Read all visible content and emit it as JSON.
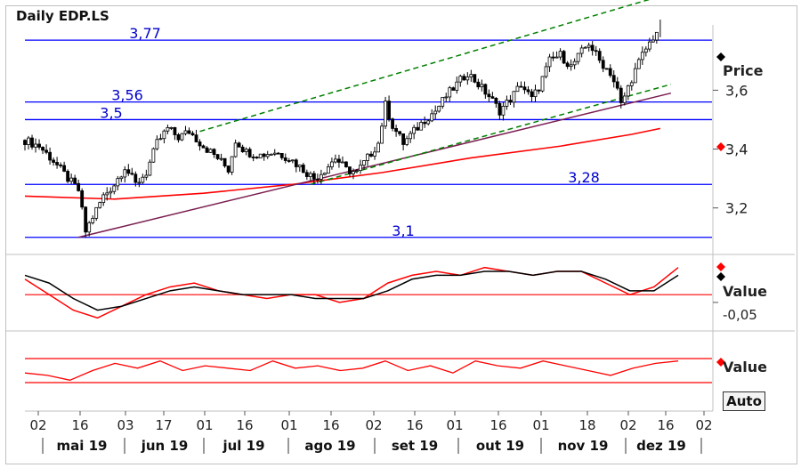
{
  "title": "Daily EDP.LS",
  "panels": {
    "price": {
      "label": "Price"
    },
    "osc1": {
      "label": "Value",
      "tick": "-0,05"
    },
    "osc2": {
      "label": "Value"
    }
  },
  "auto_button": "Auto",
  "colors": {
    "candle": "#000000",
    "level": "#0000ff",
    "channel": "#008000",
    "trendline": "#7a1e50",
    "moving_average": "#ff0000",
    "osc_red": "#ff0000",
    "osc_black": "#000000",
    "ref_line": "#ff0000",
    "level_text": "#0000cc"
  },
  "chart_data": [
    {
      "type": "candlestick",
      "title": "Daily EDP.LS",
      "ylabel": "Price",
      "ylim": [
        3.06,
        3.84
      ],
      "yticks": [
        "3,2",
        "3,4",
        "3,6"
      ],
      "x_day_ticks": [
        "02",
        "16",
        "03",
        "17",
        "01",
        "16",
        "01",
        "16",
        "02",
        "16",
        "01",
        "16",
        "01",
        "18",
        "02",
        "16",
        "02"
      ],
      "x_month_labels": [
        "mai 19",
        "jun 19",
        "jul 19",
        "ago 19",
        "set 19",
        "out 19",
        "nov 19",
        "dez 19"
      ],
      "horizontal_levels": [
        {
          "value": 3.77,
          "label": "3,77"
        },
        {
          "value": 3.56,
          "label": "3,56"
        },
        {
          "value": 3.5,
          "label": "3,5"
        },
        {
          "value": 3.28,
          "label": "3,28"
        },
        {
          "value": 3.1,
          "label": "3,1"
        }
      ],
      "close_series": [
        {
          "t": 0,
          "c": 3.43
        },
        {
          "t": 4,
          "c": 3.41
        },
        {
          "t": 8,
          "c": 3.36
        },
        {
          "t": 12,
          "c": 3.3
        },
        {
          "t": 15,
          "c": 3.26
        },
        {
          "t": 17,
          "c": 3.12
        },
        {
          "t": 19,
          "c": 3.17
        },
        {
          "t": 22,
          "c": 3.24
        },
        {
          "t": 25,
          "c": 3.28
        },
        {
          "t": 28,
          "c": 3.34
        },
        {
          "t": 31,
          "c": 3.28
        },
        {
          "t": 34,
          "c": 3.32
        },
        {
          "t": 37,
          "c": 3.42
        },
        {
          "t": 40,
          "c": 3.47
        },
        {
          "t": 43,
          "c": 3.44
        },
        {
          "t": 46,
          "c": 3.46
        },
        {
          "t": 50,
          "c": 3.41
        },
        {
          "t": 54,
          "c": 3.37
        },
        {
          "t": 57,
          "c": 3.33
        },
        {
          "t": 59,
          "c": 3.43
        },
        {
          "t": 62,
          "c": 3.39
        },
        {
          "t": 66,
          "c": 3.38
        },
        {
          "t": 70,
          "c": 3.39
        },
        {
          "t": 74,
          "c": 3.37
        },
        {
          "t": 78,
          "c": 3.33
        },
        {
          "t": 81,
          "c": 3.3
        },
        {
          "t": 84,
          "c": 3.33
        },
        {
          "t": 87,
          "c": 3.37
        },
        {
          "t": 90,
          "c": 3.33
        },
        {
          "t": 93,
          "c": 3.32
        },
        {
          "t": 96,
          "c": 3.37
        },
        {
          "t": 99,
          "c": 3.42
        },
        {
          "t": 101,
          "c": 3.55
        },
        {
          "t": 103,
          "c": 3.48
        },
        {
          "t": 106,
          "c": 3.42
        },
        {
          "t": 109,
          "c": 3.46
        },
        {
          "t": 112,
          "c": 3.5
        },
        {
          "t": 115,
          "c": 3.53
        },
        {
          "t": 118,
          "c": 3.58
        },
        {
          "t": 121,
          "c": 3.62
        },
        {
          "t": 124,
          "c": 3.66
        },
        {
          "t": 127,
          "c": 3.62
        },
        {
          "t": 130,
          "c": 3.58
        },
        {
          "t": 133,
          "c": 3.53
        },
        {
          "t": 136,
          "c": 3.57
        },
        {
          "t": 139,
          "c": 3.62
        },
        {
          "t": 142,
          "c": 3.57
        },
        {
          "t": 144,
          "c": 3.61
        },
        {
          "t": 147,
          "c": 3.7
        },
        {
          "t": 150,
          "c": 3.72
        },
        {
          "t": 153,
          "c": 3.68
        },
        {
          "t": 156,
          "c": 3.73
        },
        {
          "t": 158,
          "c": 3.76
        },
        {
          "t": 161,
          "c": 3.7
        },
        {
          "t": 164,
          "c": 3.66
        },
        {
          "t": 166,
          "c": 3.6
        },
        {
          "t": 167,
          "c": 3.55
        },
        {
          "t": 170,
          "c": 3.64
        },
        {
          "t": 173,
          "c": 3.72
        },
        {
          "t": 176,
          "c": 3.78
        },
        {
          "t": 178,
          "c": 3.82
        }
      ],
      "moving_average": [
        {
          "t": 0,
          "v": 3.24
        },
        {
          "t": 25,
          "v": 3.23
        },
        {
          "t": 50,
          "v": 3.25
        },
        {
          "t": 75,
          "v": 3.28
        },
        {
          "t": 100,
          "v": 3.32
        },
        {
          "t": 125,
          "v": 3.37
        },
        {
          "t": 150,
          "v": 3.41
        },
        {
          "t": 170,
          "v": 3.45
        },
        {
          "t": 178,
          "v": 3.47
        }
      ],
      "trendline": {
        "from": {
          "t": 15,
          "v": 3.1
        },
        "to": {
          "t": 181,
          "v": 3.59
        }
      },
      "channel_upper": {
        "from": {
          "t": 49,
          "v": 3.46
        },
        "to": {
          "t": 181,
          "v": 3.93
        }
      },
      "channel_lower": {
        "from": {
          "t": 80,
          "v": 3.28
        },
        "to": {
          "t": 181,
          "v": 3.62
        }
      }
    },
    {
      "type": "line",
      "ylabel": "Value",
      "yticks": [
        "-0,05"
      ],
      "series": [
        {
          "color": "red",
          "values": [
            0.01,
            -0.03,
            -0.07,
            -0.09,
            -0.06,
            -0.03,
            -0.01,
            0.0,
            -0.02,
            -0.03,
            -0.04,
            -0.03,
            -0.03,
            -0.05,
            -0.04,
            0.0,
            0.02,
            0.03,
            0.02,
            0.04,
            0.03,
            0.02,
            0.03,
            0.03,
            0.0,
            -0.03,
            -0.01,
            0.04
          ]
        },
        {
          "color": "black",
          "values": [
            0.02,
            0.0,
            -0.04,
            -0.07,
            -0.06,
            -0.04,
            -0.02,
            -0.01,
            -0.02,
            -0.03,
            -0.03,
            -0.03,
            -0.04,
            -0.04,
            -0.04,
            -0.02,
            0.01,
            0.02,
            0.02,
            0.03,
            0.03,
            0.02,
            0.03,
            0.03,
            0.01,
            -0.02,
            -0.02,
            0.02
          ]
        }
      ],
      "reference": -0.03
    },
    {
      "type": "line",
      "ylabel": "Value",
      "series": [
        {
          "color": "red",
          "values": [
            0.4,
            0.3,
            0.1,
            0.5,
            0.8,
            0.6,
            0.9,
            0.5,
            0.7,
            0.6,
            0.5,
            0.9,
            0.6,
            0.7,
            0.5,
            0.6,
            0.9,
            0.5,
            0.7,
            0.4,
            0.9,
            0.7,
            0.6,
            0.9,
            0.7,
            0.5,
            0.3,
            0.6,
            0.8,
            0.9
          ]
        }
      ],
      "reference_high": 1.0,
      "reference_low": 0.0
    }
  ]
}
